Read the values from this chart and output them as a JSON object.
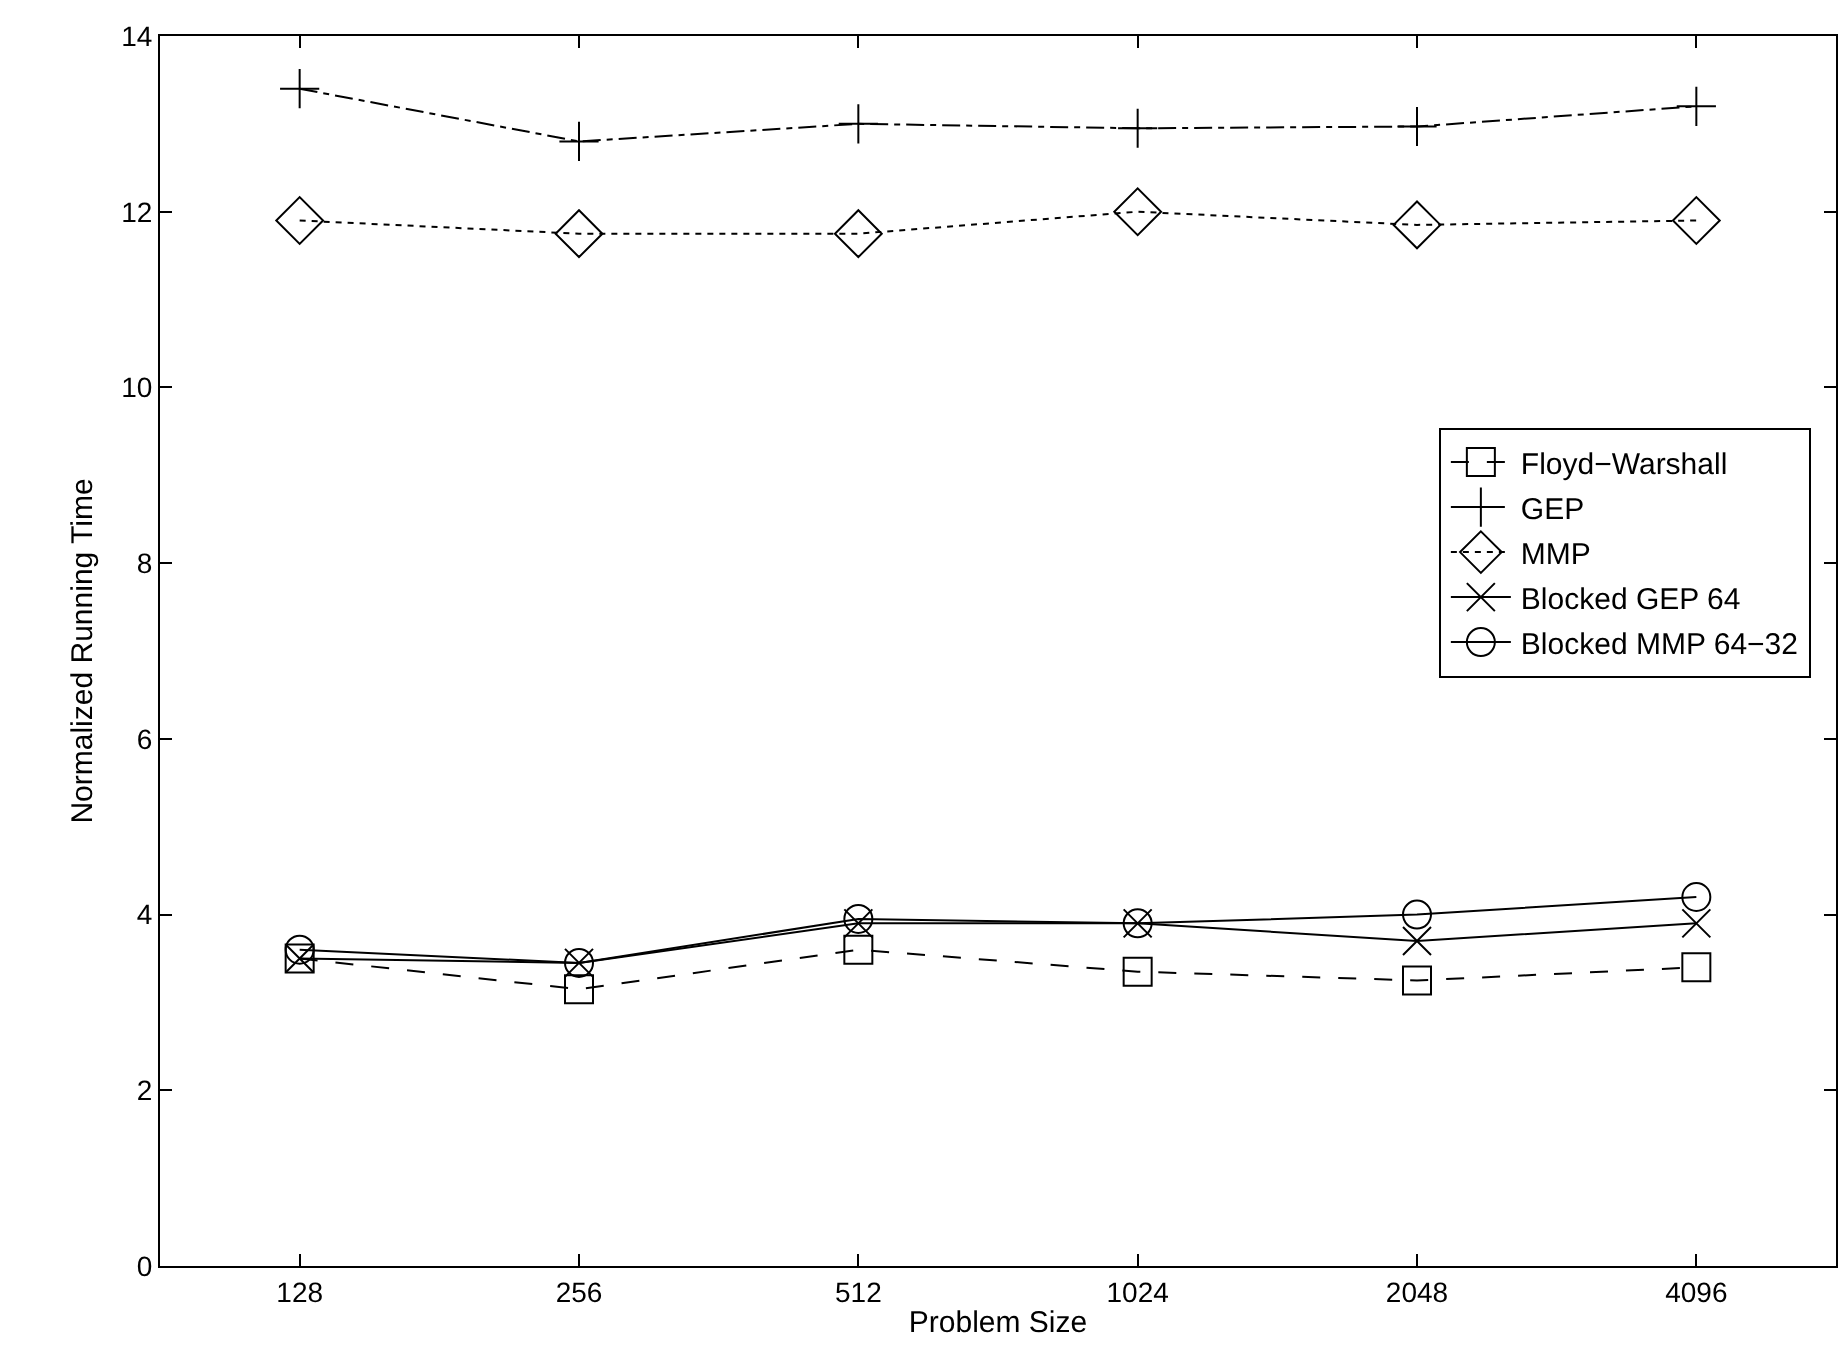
{
  "chart_data": {
    "type": "line",
    "xlabel": "Problem Size",
    "ylabel": "Normalized Running Time",
    "categories": [
      "128",
      "256",
      "512",
      "1024",
      "2048",
      "4096"
    ],
    "ylim": [
      0,
      14
    ],
    "yticks": [
      0,
      2,
      4,
      6,
      8,
      10,
      12,
      14
    ],
    "grid": false,
    "legend": "right",
    "series": [
      {
        "name": "Floyd−Warshall",
        "color": "#000000",
        "marker": "square",
        "line_style": "dashed",
        "values": [
          3.5,
          3.15,
          3.6,
          3.35,
          3.25,
          3.4
        ]
      },
      {
        "name": "GEP",
        "color": "#000000",
        "marker": "plus",
        "line_style": "dashdot",
        "values": [
          13.4,
          12.8,
          13.0,
          12.95,
          12.97,
          13.2
        ]
      },
      {
        "name": "MMP",
        "color": "#000000",
        "marker": "diamond",
        "line_style": "dotted",
        "values": [
          11.9,
          11.75,
          11.75,
          12.0,
          11.85,
          11.9
        ]
      },
      {
        "name": "Blocked GEP 64",
        "color": "#000000",
        "marker": "cross",
        "line_style": "solid",
        "values": [
          3.5,
          3.45,
          3.9,
          3.9,
          3.7,
          3.9
        ]
      },
      {
        "name": "Blocked MMP 64−32",
        "color": "#000000",
        "marker": "circle",
        "line_style": "solid",
        "values": [
          3.6,
          3.45,
          3.95,
          3.9,
          4.0,
          4.2
        ]
      }
    ]
  }
}
